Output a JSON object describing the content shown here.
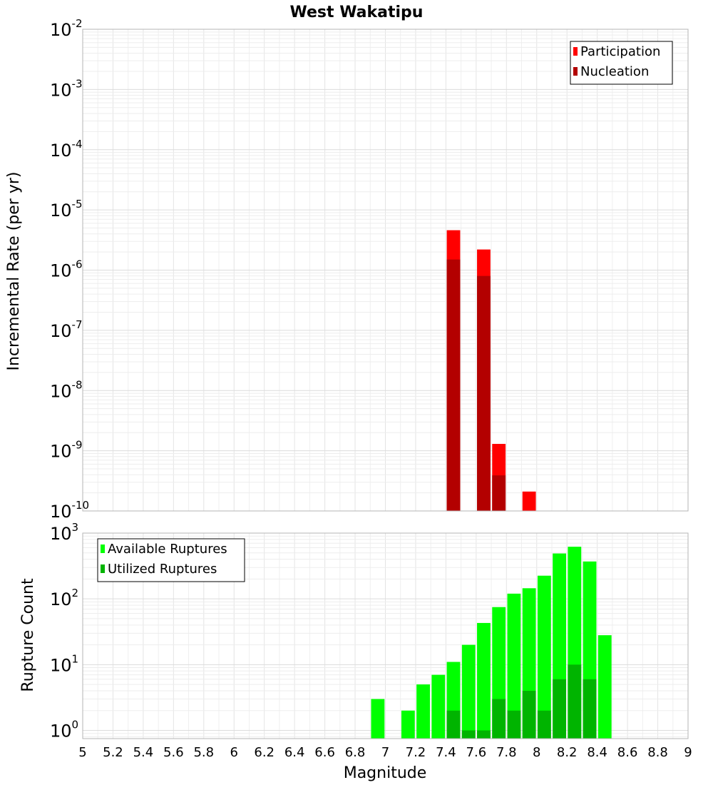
{
  "chart_data": [
    {
      "type": "bar",
      "title": "West Wakatipu",
      "xlabel": "",
      "ylabel": "Incremental Rate (per yr)",
      "yscale": "log",
      "xlim": [
        5,
        9
      ],
      "ylim": [
        1e-10,
        0.01
      ],
      "ytick_exponents": [
        -10,
        -9,
        -8,
        -7,
        -6,
        -5,
        -4,
        -3,
        -2
      ],
      "legend_position": "top-right",
      "bin_width": 0.1,
      "series": [
        {
          "name": "Participation",
          "color": "#ff0000",
          "x": [
            7.45,
            7.65,
            7.75,
            7.95
          ],
          "values": [
            4.6e-06,
            2.2e-06,
            1.3e-09,
            2.1e-10
          ]
        },
        {
          "name": "Nucleation",
          "color": "#b30000",
          "x": [
            7.45,
            7.65,
            7.75
          ],
          "values": [
            1.5e-06,
            8e-07,
            3.9e-10
          ]
        }
      ]
    },
    {
      "type": "bar",
      "title": "",
      "xlabel": "Magnitude",
      "ylabel": "Rupture Count",
      "yscale": "log",
      "xlim": [
        5,
        9
      ],
      "ylim": [
        0.75,
        1000
      ],
      "ytick_exponents": [
        0,
        1,
        2,
        3
      ],
      "xticks": [
        "5",
        "5.2",
        "5.4",
        "5.6",
        "5.8",
        "6",
        "6.2",
        "6.4",
        "6.6",
        "6.8",
        "7",
        "7.2",
        "7.4",
        "7.6",
        "7.8",
        "8",
        "8.2",
        "8.4",
        "8.6",
        "8.8",
        "9"
      ],
      "legend_position": "top-left",
      "bin_width": 0.1,
      "series": [
        {
          "name": "Available Ruptures",
          "color": "#00ff00",
          "x": [
            6.95,
            7.15,
            7.25,
            7.35,
            7.45,
            7.55,
            7.65,
            7.75,
            7.85,
            7.95,
            8.05,
            8.15,
            8.25,
            8.35,
            8.45
          ],
          "values": [
            3,
            2,
            5,
            7,
            11,
            20,
            43,
            75,
            120,
            145,
            225,
            490,
            620,
            370,
            28
          ]
        },
        {
          "name": "Utilized Ruptures",
          "color": "#00b400",
          "x": [
            7.45,
            7.55,
            7.65,
            7.75,
            7.85,
            7.95,
            8.05,
            8.15,
            8.25,
            8.35
          ],
          "values": [
            2,
            1,
            1,
            3,
            2,
            4,
            2,
            6,
            10,
            6
          ]
        }
      ]
    }
  ]
}
